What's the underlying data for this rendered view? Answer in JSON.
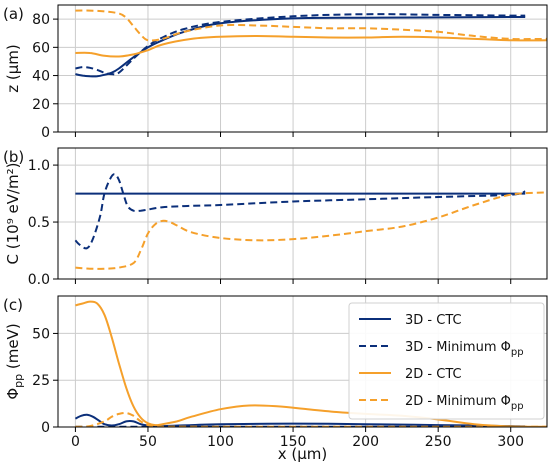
{
  "colors": {
    "navy": "#0b2f7a",
    "orange": "#f5a02b",
    "grid": "#cccccc",
    "axis": "#000000"
  },
  "chart_data": [
    {
      "type": "line",
      "panel_label": "(a)",
      "ylabel_main": "z (µm)",
      "ylabel_sub": "",
      "xlabel": "",
      "xlim": [
        -12,
        325
      ],
      "ylim": [
        0,
        90
      ],
      "xticks": [
        0,
        50,
        100,
        150,
        200,
        250,
        300
      ],
      "yticks": [
        0,
        20,
        40,
        60,
        80
      ],
      "xtick_labels_visible": false,
      "grid": true,
      "legend": null,
      "series": [
        {
          "name": "3D - CTC",
          "color": "navy",
          "dash": "solid",
          "x": [
            0,
            5,
            10,
            15,
            20,
            25,
            30,
            40,
            50,
            60,
            75,
            100,
            150,
            200,
            250,
            300,
            310
          ],
          "y": [
            41,
            40,
            39.5,
            39.5,
            40.5,
            42,
            45,
            53,
            60,
            65,
            71,
            77,
            80.5,
            81,
            81.2,
            81.5,
            81.5
          ]
        },
        {
          "name": "3D - Minimum Φpp",
          "color": "navy",
          "dash": "dashed",
          "x": [
            0,
            5,
            10,
            15,
            20,
            25,
            30,
            40,
            50,
            60,
            75,
            100,
            150,
            200,
            250,
            300,
            310
          ],
          "y": [
            45,
            46,
            45.5,
            44,
            42,
            41,
            42,
            52,
            61,
            67,
            73,
            78,
            82,
            83.5,
            83,
            82.5,
            82.5
          ]
        },
        {
          "name": "2D - CTC",
          "color": "orange",
          "dash": "solid",
          "x": [
            0,
            10,
            20,
            30,
            40,
            50,
            60,
            80,
            100,
            125,
            150,
            175,
            200,
            225,
            250,
            275,
            300,
            325
          ],
          "y": [
            56,
            56,
            54,
            53.5,
            55,
            58,
            62,
            66,
            67.5,
            68,
            67.5,
            67,
            67,
            67.5,
            67,
            66,
            65,
            65
          ]
        },
        {
          "name": "2D - Minimum Φpp",
          "color": "orange",
          "dash": "dashed",
          "x": [
            0,
            10,
            20,
            30,
            35,
            40,
            45,
            50,
            60,
            75,
            100,
            125,
            150,
            175,
            200,
            225,
            250,
            275,
            300,
            325
          ],
          "y": [
            86,
            86,
            85.5,
            84,
            81,
            75,
            69,
            65,
            66,
            71,
            75.5,
            75.5,
            74.5,
            73.5,
            73.5,
            72.5,
            71,
            68,
            66,
            66
          ]
        }
      ]
    },
    {
      "type": "line",
      "panel_label": "(b)",
      "ylabel_main": "C (10⁹ eV/m²)",
      "ylabel_sub": "",
      "xlabel": "",
      "xlim": [
        -12,
        325
      ],
      "ylim": [
        0,
        1.15
      ],
      "xticks": [
        0,
        50,
        100,
        150,
        200,
        250,
        300
      ],
      "yticks": [
        0.0,
        0.5,
        1.0
      ],
      "ytick_labels": [
        "0.0",
        "0.5",
        "1.0"
      ],
      "xtick_labels_visible": false,
      "grid": true,
      "legend": null,
      "series": [
        {
          "name": "3D - CTC",
          "color": "navy",
          "dash": "solid",
          "x": [
            0,
            50,
            100,
            150,
            200,
            250,
            300,
            310
          ],
          "y": [
            0.75,
            0.75,
            0.75,
            0.75,
            0.75,
            0.75,
            0.75,
            0.75
          ]
        },
        {
          "name": "3D - Minimum Φpp",
          "color": "navy",
          "dash": "dashed",
          "x": [
            0,
            3,
            8,
            12,
            17,
            20,
            24,
            27,
            30,
            33,
            36,
            40,
            45,
            50,
            60,
            75,
            100,
            150,
            200,
            250,
            300,
            310
          ],
          "y": [
            0.34,
            0.3,
            0.27,
            0.35,
            0.55,
            0.75,
            0.88,
            0.92,
            0.87,
            0.75,
            0.64,
            0.6,
            0.6,
            0.61,
            0.63,
            0.64,
            0.65,
            0.68,
            0.7,
            0.72,
            0.74,
            0.77
          ]
        },
        {
          "name": "2D - Minimum Φpp",
          "color": "orange",
          "dash": "dashed",
          "x": [
            0,
            10,
            20,
            30,
            40,
            45,
            50,
            55,
            60,
            65,
            70,
            80,
            100,
            125,
            150,
            175,
            200,
            225,
            250,
            275,
            300,
            325
          ],
          "y": [
            0.1,
            0.09,
            0.09,
            0.1,
            0.14,
            0.25,
            0.4,
            0.48,
            0.51,
            0.5,
            0.47,
            0.41,
            0.36,
            0.34,
            0.35,
            0.38,
            0.42,
            0.46,
            0.54,
            0.65,
            0.74,
            0.76
          ]
        }
      ]
    },
    {
      "type": "line",
      "panel_label": "(c)",
      "ylabel_main": "Φ",
      "ylabel_sub": "pp",
      "ylabel_unit": " (meV)",
      "xlabel": "x (µm)",
      "xlim": [
        -12,
        325
      ],
      "ylim": [
        0,
        70
      ],
      "xticks": [
        0,
        50,
        100,
        150,
        200,
        250,
        300
      ],
      "yticks": [
        0,
        25,
        50
      ],
      "xtick_labels_visible": true,
      "grid": true,
      "legend": {
        "placement": "right",
        "entries": [
          {
            "main": "3D - CTC",
            "sub": "",
            "color": "navy",
            "dash": "solid"
          },
          {
            "main": "3D - Minimum Φ",
            "sub": "pp",
            "color": "navy",
            "dash": "dashed"
          },
          {
            "main": "2D - CTC",
            "sub": "",
            "color": "orange",
            "dash": "solid"
          },
          {
            "main": "2D - Minimum Φ",
            "sub": "pp",
            "color": "orange",
            "dash": "dashed"
          }
        ]
      },
      "series": [
        {
          "name": "3D - CTC",
          "color": "navy",
          "dash": "solid",
          "x": [
            0,
            4,
            8,
            12,
            16,
            20,
            25,
            30,
            35,
            40,
            45,
            50,
            60,
            80,
            100,
            150,
            200,
            250,
            300,
            310
          ],
          "y": [
            4.5,
            6,
            6.5,
            5.5,
            3.5,
            1.5,
            0.8,
            1.5,
            3,
            3,
            1.5,
            0.8,
            0.5,
            1,
            1.5,
            1.8,
            1.5,
            1,
            0.5,
            0.3
          ]
        },
        {
          "name": "3D - Minimum Φpp",
          "color": "navy",
          "dash": "dashed",
          "x": [
            0,
            50,
            100,
            150,
            200,
            250,
            300,
            310
          ],
          "y": [
            0.1,
            0.1,
            0.1,
            0.1,
            0.1,
            0.1,
            0.1,
            0.1
          ]
        },
        {
          "name": "2D - CTC",
          "color": "orange",
          "dash": "solid",
          "x": [
            0,
            5,
            10,
            15,
            20,
            25,
            30,
            35,
            40,
            45,
            50,
            55,
            60,
            70,
            80,
            100,
            120,
            140,
            160,
            180,
            200,
            225,
            250,
            275,
            300,
            325
          ],
          "y": [
            65,
            66,
            67,
            66,
            60,
            48,
            34,
            21,
            11,
            5,
            2,
            1,
            1.5,
            3,
            5.5,
            9.5,
            11.5,
            11,
            9.5,
            8,
            7,
            6,
            4,
            1.5,
            0.3,
            0.1
          ]
        },
        {
          "name": "2D - Minimum Φpp",
          "color": "orange",
          "dash": "dashed",
          "x": [
            0,
            10,
            20,
            25,
            30,
            35,
            40,
            45,
            50,
            55,
            60,
            80,
            100,
            150,
            200,
            250,
            300,
            325
          ],
          "y": [
            0.1,
            0.5,
            3,
            5.5,
            7,
            7.5,
            6,
            3,
            1,
            0.4,
            0.2,
            0.2,
            0.1,
            0.1,
            0.1,
            0.1,
            0.1,
            0.1
          ]
        }
      ]
    }
  ]
}
